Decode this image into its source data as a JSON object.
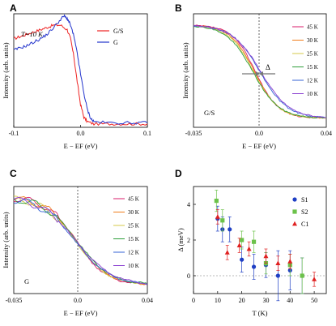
{
  "chart_data": [
    {
      "panel": "A",
      "type": "line",
      "annotation": "T=10 K",
      "xlabel": "E − EF (eV)",
      "ylabel": "Intensity (arb. units)",
      "xlim": [
        -0.1,
        0.1
      ],
      "xticks": [
        "-0.1",
        "0.0",
        "0.1"
      ],
      "legend": "top-right",
      "series": [
        {
          "name": "G/S",
          "color": "#ee2222",
          "x": [
            -0.1,
            -0.09,
            -0.08,
            -0.07,
            -0.06,
            -0.05,
            -0.04,
            -0.03,
            -0.02,
            -0.015,
            -0.01,
            -0.005,
            0.0,
            0.005,
            0.01,
            0.02,
            0.04,
            0.06,
            0.08,
            0.1
          ],
          "y": [
            0.78,
            0.8,
            0.82,
            0.84,
            0.86,
            0.88,
            0.9,
            0.9,
            0.86,
            0.78,
            0.62,
            0.4,
            0.2,
            0.09,
            0.05,
            0.03,
            0.03,
            0.03,
            0.03,
            0.03
          ]
        },
        {
          "name": "G",
          "color": "#2233cc",
          "x": [
            -0.1,
            -0.09,
            -0.08,
            -0.07,
            -0.06,
            -0.05,
            -0.04,
            -0.03,
            -0.025,
            -0.02,
            -0.015,
            -0.01,
            -0.005,
            0.0,
            0.005,
            0.01,
            0.015,
            0.02,
            0.04,
            0.06,
            0.08,
            0.1
          ],
          "y": [
            0.68,
            0.7,
            0.72,
            0.75,
            0.78,
            0.82,
            0.88,
            0.95,
            0.98,
            0.96,
            0.9,
            0.8,
            0.65,
            0.47,
            0.3,
            0.16,
            0.08,
            0.05,
            0.04,
            0.04,
            0.04,
            0.04
          ]
        }
      ]
    },
    {
      "panel": "B",
      "type": "line",
      "annotation": "G/S",
      "gap_label": "Δ",
      "xlabel": "E − EF (eV)",
      "ylabel": "Intensity (arb. units)",
      "xlim": [
        -0.035,
        0.04
      ],
      "xticks": [
        "-0.035",
        "0.0",
        "0.04"
      ],
      "legend": "right",
      "series": [
        {
          "name": "45 K",
          "color": "#d91e6b",
          "shift": 0.0
        },
        {
          "name": "30 K",
          "color": "#f07d1a",
          "shift": -0.0005
        },
        {
          "name": "25 K",
          "color": "#d4c84a",
          "shift": -0.001
        },
        {
          "name": "15 K",
          "color": "#2e9e3a",
          "shift": -0.0015
        },
        {
          "name": "12 K",
          "color": "#3563d6",
          "shift": 0.0025
        },
        {
          "name": "10 K",
          "color": "#8a3fd1",
          "shift": 0.003
        }
      ]
    },
    {
      "panel": "C",
      "type": "line",
      "annotation": "G",
      "xlabel": "E − EF (eV)",
      "ylabel": "Intensity (arb. units)",
      "xlim": [
        -0.035,
        0.04
      ],
      "xticks": [
        "-0.035",
        "0.0",
        "0.04"
      ],
      "legend": "right",
      "series": [
        {
          "name": "45 K",
          "color": "#d91e6b",
          "shift": 0.0
        },
        {
          "name": "30 K",
          "color": "#f07d1a",
          "shift": 0.0003
        },
        {
          "name": "25 K",
          "color": "#d4c84a",
          "shift": -0.0003
        },
        {
          "name": "15 K",
          "color": "#2e9e3a",
          "shift": 0.0005
        },
        {
          "name": "12 K",
          "color": "#3563d6",
          "shift": -0.0005
        },
        {
          "name": "10 K",
          "color": "#8a3fd1",
          "shift": 0.0002
        }
      ]
    },
    {
      "panel": "D",
      "type": "scatter",
      "xlabel": "T (K)",
      "ylabel": "Δ (meV)",
      "xlim": [
        0,
        55
      ],
      "ylim": [
        -1,
        5
      ],
      "xticks": [
        0,
        10,
        20,
        30,
        40,
        50
      ],
      "yticks": [
        0,
        2,
        4
      ],
      "legend": "top-right",
      "series": [
        {
          "name": "S1",
          "color": "#1f3fc4",
          "marker": "circle",
          "x": [
            10,
            12,
            15,
            20,
            25,
            30,
            35,
            40,
            45
          ],
          "y": [
            3.2,
            2.6,
            2.6,
            0.9,
            0.5,
            0.6,
            0.0,
            0.3,
            0.0
          ],
          "err": [
            0.7,
            0.7,
            0.7,
            0.7,
            0.7,
            0.7,
            1.4,
            1.1,
            1.0
          ]
        },
        {
          "name": "S2",
          "color": "#6cc24a",
          "marker": "square",
          "x": [
            9.5,
            12,
            20,
            25,
            30,
            40,
            45
          ],
          "y": [
            4.2,
            3.1,
            2.0,
            1.9,
            0.7,
            0.6,
            0.0
          ],
          "err": [
            0.6,
            0.6,
            0.5,
            0.6,
            0.6,
            0.6,
            1.0
          ]
        },
        {
          "name": "C1",
          "color": "#e02020",
          "marker": "triangle",
          "x": [
            10,
            14,
            19,
            23,
            30,
            35,
            40,
            50
          ],
          "y": [
            3.3,
            1.3,
            1.7,
            1.5,
            1.1,
            0.7,
            0.8,
            -0.2
          ],
          "err": [
            0.4,
            0.4,
            0.4,
            0.4,
            0.4,
            0.4,
            0.4,
            0.4
          ]
        }
      ]
    }
  ]
}
